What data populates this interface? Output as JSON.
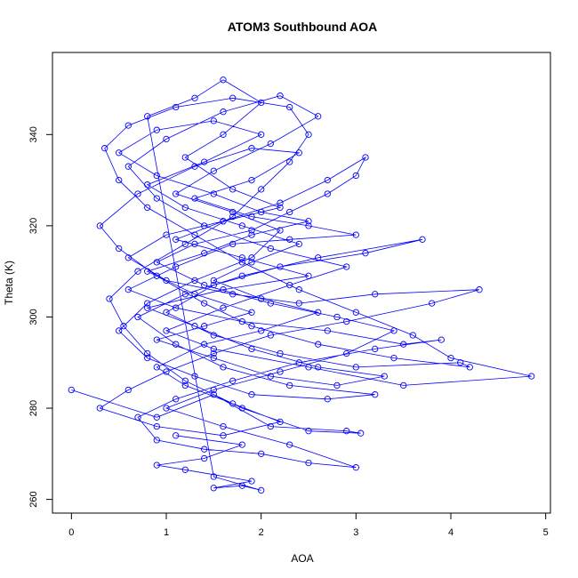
{
  "chart_data": {
    "type": "scatter",
    "title": "ATOM3 Southbound AOA",
    "xlabel": "AOA",
    "ylabel": "Theta (K)",
    "xlim": [
      -0.2,
      5.05
    ],
    "ylim": [
      257,
      358
    ],
    "x_ticks": [
      0,
      1,
      2,
      3,
      4,
      5
    ],
    "y_ticks": [
      260,
      280,
      300,
      320,
      340
    ],
    "grid": false,
    "legend": "none",
    "color": "#0000ff",
    "marker": "open-circle",
    "connected": true,
    "series": [
      {
        "points": [
          [
            0.0,
            284
          ],
          [
            0.9,
            278
          ],
          [
            1.5,
            283
          ],
          [
            2.1,
            276
          ],
          [
            2.9,
            275
          ],
          [
            3.05,
            274.5
          ],
          [
            2.5,
            275
          ],
          [
            1.8,
            280
          ],
          [
            1.2,
            286
          ],
          [
            0.8,
            292
          ],
          [
            0.55,
            298
          ],
          [
            0.4,
            304
          ],
          [
            0.7,
            310
          ],
          [
            1.2,
            316
          ],
          [
            1.7,
            322
          ],
          [
            2.0,
            328
          ],
          [
            2.3,
            334
          ],
          [
            2.5,
            340
          ],
          [
            2.3,
            346
          ],
          [
            1.7,
            348
          ],
          [
            1.1,
            346
          ],
          [
            0.6,
            342
          ],
          [
            0.35,
            337
          ],
          [
            0.5,
            330
          ],
          [
            0.8,
            324
          ],
          [
            1.3,
            318
          ],
          [
            1.8,
            312
          ],
          [
            2.4,
            306
          ],
          [
            3.0,
            301
          ],
          [
            3.6,
            296
          ],
          [
            4.0,
            291
          ],
          [
            4.85,
            287
          ],
          [
            3.5,
            285
          ],
          [
            2.5,
            289
          ],
          [
            1.5,
            293
          ],
          [
            1.0,
            297
          ],
          [
            1.6,
            302
          ],
          [
            2.3,
            307
          ],
          [
            2.9,
            311
          ],
          [
            2.1,
            315
          ],
          [
            1.4,
            320
          ],
          [
            0.9,
            326
          ],
          [
            0.6,
            333
          ],
          [
            1.0,
            339
          ],
          [
            1.6,
            345
          ],
          [
            2.2,
            348.5
          ],
          [
            2.6,
            344
          ],
          [
            2.1,
            338
          ],
          [
            1.5,
            332
          ],
          [
            1.1,
            327
          ],
          [
            1.7,
            323
          ],
          [
            2.2,
            319
          ],
          [
            1.9,
            313
          ],
          [
            1.3,
            308
          ],
          [
            0.8,
            303
          ],
          [
            0.5,
            297
          ],
          [
            0.8,
            291
          ],
          [
            1.3,
            287
          ],
          [
            1.9,
            283
          ],
          [
            2.7,
            282
          ],
          [
            3.2,
            283
          ],
          [
            2.3,
            285
          ],
          [
            1.6,
            289
          ],
          [
            1.1,
            294
          ],
          [
            0.7,
            300
          ],
          [
            1.2,
            305
          ],
          [
            1.8,
            309
          ],
          [
            2.6,
            313
          ],
          [
            3.7,
            317
          ],
          [
            3.1,
            314
          ],
          [
            2.2,
            311
          ],
          [
            1.5,
            307
          ],
          [
            1.0,
            301
          ],
          [
            1.5,
            296
          ],
          [
            2.2,
            292
          ],
          [
            3.0,
            289
          ],
          [
            4.1,
            290
          ],
          [
            4.2,
            289
          ],
          [
            3.4,
            291
          ],
          [
            2.6,
            294
          ],
          [
            1.9,
            298
          ],
          [
            1.4,
            303
          ],
          [
            0.9,
            309
          ],
          [
            0.5,
            315
          ],
          [
            0.3,
            320
          ],
          [
            0.7,
            327
          ],
          [
            1.3,
            333
          ],
          [
            1.9,
            337
          ],
          [
            2.4,
            336
          ],
          [
            1.9,
            330
          ],
          [
            1.3,
            326
          ],
          [
            1.9,
            322
          ],
          [
            2.5,
            320
          ],
          [
            3.0,
            318
          ],
          [
            2.3,
            317
          ],
          [
            1.7,
            316
          ],
          [
            1.1,
            311
          ],
          [
            0.6,
            306
          ],
          [
            1.1,
            302
          ],
          [
            1.8,
            299
          ],
          [
            2.7,
            297
          ],
          [
            3.5,
            294
          ],
          [
            3.9,
            295
          ],
          [
            3.2,
            293
          ],
          [
            2.4,
            290
          ],
          [
            1.7,
            286
          ],
          [
            1.1,
            282
          ],
          [
            0.7,
            278
          ],
          [
            0.9,
            273
          ],
          [
            1.4,
            271
          ],
          [
            2.0,
            270
          ],
          [
            2.5,
            268
          ],
          [
            3.0,
            267
          ],
          [
            2.3,
            272
          ],
          [
            1.6,
            276
          ],
          [
            1.0,
            280
          ],
          [
            1.5,
            284
          ],
          [
            2.2,
            288
          ],
          [
            2.9,
            292
          ],
          [
            3.4,
            297
          ],
          [
            2.8,
            300
          ],
          [
            2.1,
            303
          ],
          [
            1.4,
            307
          ],
          [
            0.9,
            312
          ],
          [
            1.3,
            316
          ],
          [
            1.9,
            319
          ],
          [
            2.3,
            323
          ],
          [
            2.7,
            327
          ],
          [
            3.0,
            331
          ],
          [
            3.1,
            335
          ],
          [
            2.7,
            330
          ],
          [
            2.2,
            325
          ],
          [
            1.6,
            321
          ],
          [
            1.0,
            318
          ],
          [
            0.6,
            313
          ],
          [
            1.0,
            308
          ],
          [
            1.7,
            305
          ],
          [
            2.4,
            303
          ],
          [
            3.2,
            305
          ],
          [
            4.3,
            306
          ],
          [
            3.8,
            303
          ],
          [
            2.9,
            299
          ],
          [
            2.1,
            296
          ],
          [
            1.5,
            292
          ],
          [
            1.0,
            288
          ],
          [
            0.6,
            284
          ],
          [
            0.3,
            280
          ],
          [
            0.9,
            276
          ],
          [
            1.6,
            274
          ],
          [
            2.2,
            277
          ],
          [
            1.7,
            281
          ],
          [
            1.2,
            285
          ],
          [
            0.9,
            289
          ],
          [
            1.4,
            294
          ],
          [
            2.0,
            297
          ],
          [
            2.6,
            301
          ],
          [
            2.0,
            304
          ],
          [
            1.5,
            308
          ],
          [
            1.9,
            312
          ],
          [
            2.4,
            316
          ],
          [
            1.8,
            320
          ],
          [
            1.2,
            324
          ],
          [
            0.8,
            329
          ],
          [
            1.4,
            334
          ],
          [
            2.0,
            340
          ],
          [
            1.5,
            343
          ],
          [
            0.9,
            341
          ],
          [
            0.5,
            336
          ],
          [
            0.9,
            331
          ],
          [
            1.5,
            327
          ],
          [
            2.0,
            323
          ],
          [
            2.5,
            321
          ],
          [
            1.9,
            318
          ],
          [
            1.4,
            314
          ],
          [
            0.8,
            310
          ],
          [
            1.3,
            305
          ],
          [
            1.9,
            301
          ],
          [
            1.4,
            298
          ],
          [
            0.9,
            295
          ],
          [
            1.5,
            291
          ],
          [
            2.1,
            287
          ],
          [
            2.8,
            285
          ],
          [
            3.3,
            287
          ],
          [
            2.6,
            289
          ],
          [
            1.9,
            293
          ],
          [
            1.3,
            298
          ],
          [
            0.8,
            302
          ],
          [
            1.6,
            306
          ],
          [
            2.5,
            309
          ],
          [
            1.8,
            313
          ],
          [
            1.1,
            317
          ],
          [
            1.6,
            321
          ],
          [
            2.2,
            324
          ],
          [
            1.7,
            328
          ],
          [
            1.2,
            335
          ],
          [
            1.6,
            340
          ],
          [
            2.0,
            347
          ],
          [
            1.6,
            352
          ],
          [
            1.3,
            348
          ],
          [
            0.8,
            344
          ],
          [
            1.5,
            265
          ],
          [
            2.0,
            262
          ],
          [
            1.8,
            263
          ],
          [
            1.5,
            262.5
          ],
          [
            1.9,
            264
          ],
          [
            1.2,
            266.5
          ],
          [
            0.9,
            267.5
          ],
          [
            1.4,
            269
          ],
          [
            1.8,
            272
          ],
          [
            1.1,
            274
          ]
        ]
      }
    ]
  }
}
